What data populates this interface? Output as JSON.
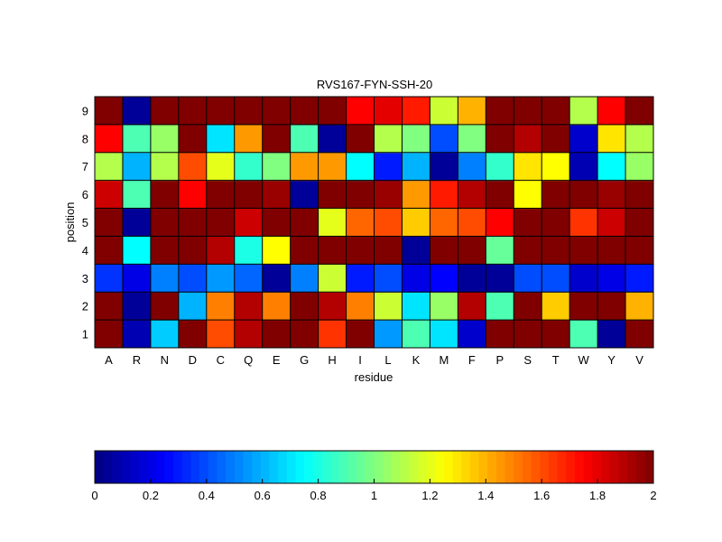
{
  "chart_data": {
    "type": "heatmap",
    "title": "RVS167-FYN-SSH-20",
    "xlabel": "residue",
    "ylabel": "position",
    "x_categories": [
      "A",
      "R",
      "N",
      "D",
      "C",
      "Q",
      "E",
      "G",
      "H",
      "I",
      "L",
      "K",
      "M",
      "F",
      "P",
      "S",
      "T",
      "W",
      "Y",
      "V"
    ],
    "y_categories": [
      "1",
      "2",
      "3",
      "4",
      "5",
      "6",
      "7",
      "8",
      "9"
    ],
    "colormap": "jet",
    "clim": [
      0,
      2
    ],
    "colorbar": {
      "placement": "bottom",
      "ticks": [
        0,
        0.2,
        0.4,
        0.6,
        0.8,
        1,
        1.2,
        1.4,
        1.6,
        1.8,
        2
      ],
      "tick_labels": [
        "0",
        "0.2",
        "0.4",
        "0.6",
        "0.8",
        "1",
        "1.2",
        "1.4",
        "1.6",
        "1.8",
        "2"
      ]
    },
    "values": {
      "1": [
        2.0,
        0.1,
        0.65,
        2.0,
        1.6,
        1.9,
        2.0,
        2.0,
        1.65,
        2.0,
        0.55,
        0.9,
        0.7,
        0.15,
        2.0,
        2.0,
        2.0,
        0.9,
        0.05,
        2.0
      ],
      "2": [
        2.0,
        0.05,
        2.0,
        0.6,
        1.5,
        1.9,
        1.5,
        2.0,
        1.9,
        1.5,
        1.15,
        0.7,
        1.05,
        1.9,
        0.9,
        2.0,
        1.35,
        2.0,
        2.0,
        1.4
      ],
      "3": [
        0.35,
        0.2,
        0.5,
        0.4,
        0.55,
        0.45,
        0.05,
        0.5,
        1.15,
        0.3,
        0.4,
        0.2,
        0.25,
        0.05,
        0.05,
        0.4,
        0.4,
        0.15,
        0.2,
        0.3
      ],
      "4": [
        2.0,
        0.75,
        2.0,
        2.0,
        1.9,
        0.8,
        1.25,
        2.0,
        2.0,
        2.0,
        2.0,
        0.05,
        2.0,
        2.0,
        0.95,
        2.0,
        2.0,
        2.0,
        2.0,
        2.0
      ],
      "5": [
        2.0,
        0.05,
        2.0,
        2.0,
        2.0,
        1.85,
        2.0,
        2.0,
        1.2,
        1.55,
        1.6,
        1.35,
        1.55,
        1.6,
        1.75,
        2.0,
        2.0,
        1.65,
        1.85,
        2.0
      ],
      "6": [
        1.85,
        0.9,
        2.0,
        1.75,
        2.0,
        2.0,
        1.95,
        0.05,
        2.0,
        2.0,
        1.95,
        1.45,
        1.7,
        1.9,
        2.0,
        1.25,
        2.0,
        2.0,
        1.95,
        2.0
      ],
      "7": [
        1.1,
        0.6,
        1.1,
        1.6,
        1.2,
        0.85,
        1.0,
        1.45,
        1.45,
        0.75,
        0.3,
        0.6,
        0.05,
        0.5,
        0.85,
        1.3,
        1.25,
        0.1,
        0.75,
        1.05
      ],
      "8": [
        1.75,
        0.9,
        1.05,
        2.0,
        0.7,
        1.45,
        2.0,
        0.9,
        0.05,
        2.0,
        1.1,
        1.0,
        0.4,
        1.0,
        2.0,
        1.9,
        2.0,
        0.15,
        1.3,
        1.1
      ],
      "9": [
        2.0,
        0.05,
        2.0,
        2.0,
        2.0,
        2.0,
        2.0,
        2.0,
        2.0,
        1.75,
        1.8,
        1.7,
        1.15,
        1.4,
        2.0,
        2.0,
        2.0,
        1.1,
        1.75,
        2.0
      ]
    }
  }
}
